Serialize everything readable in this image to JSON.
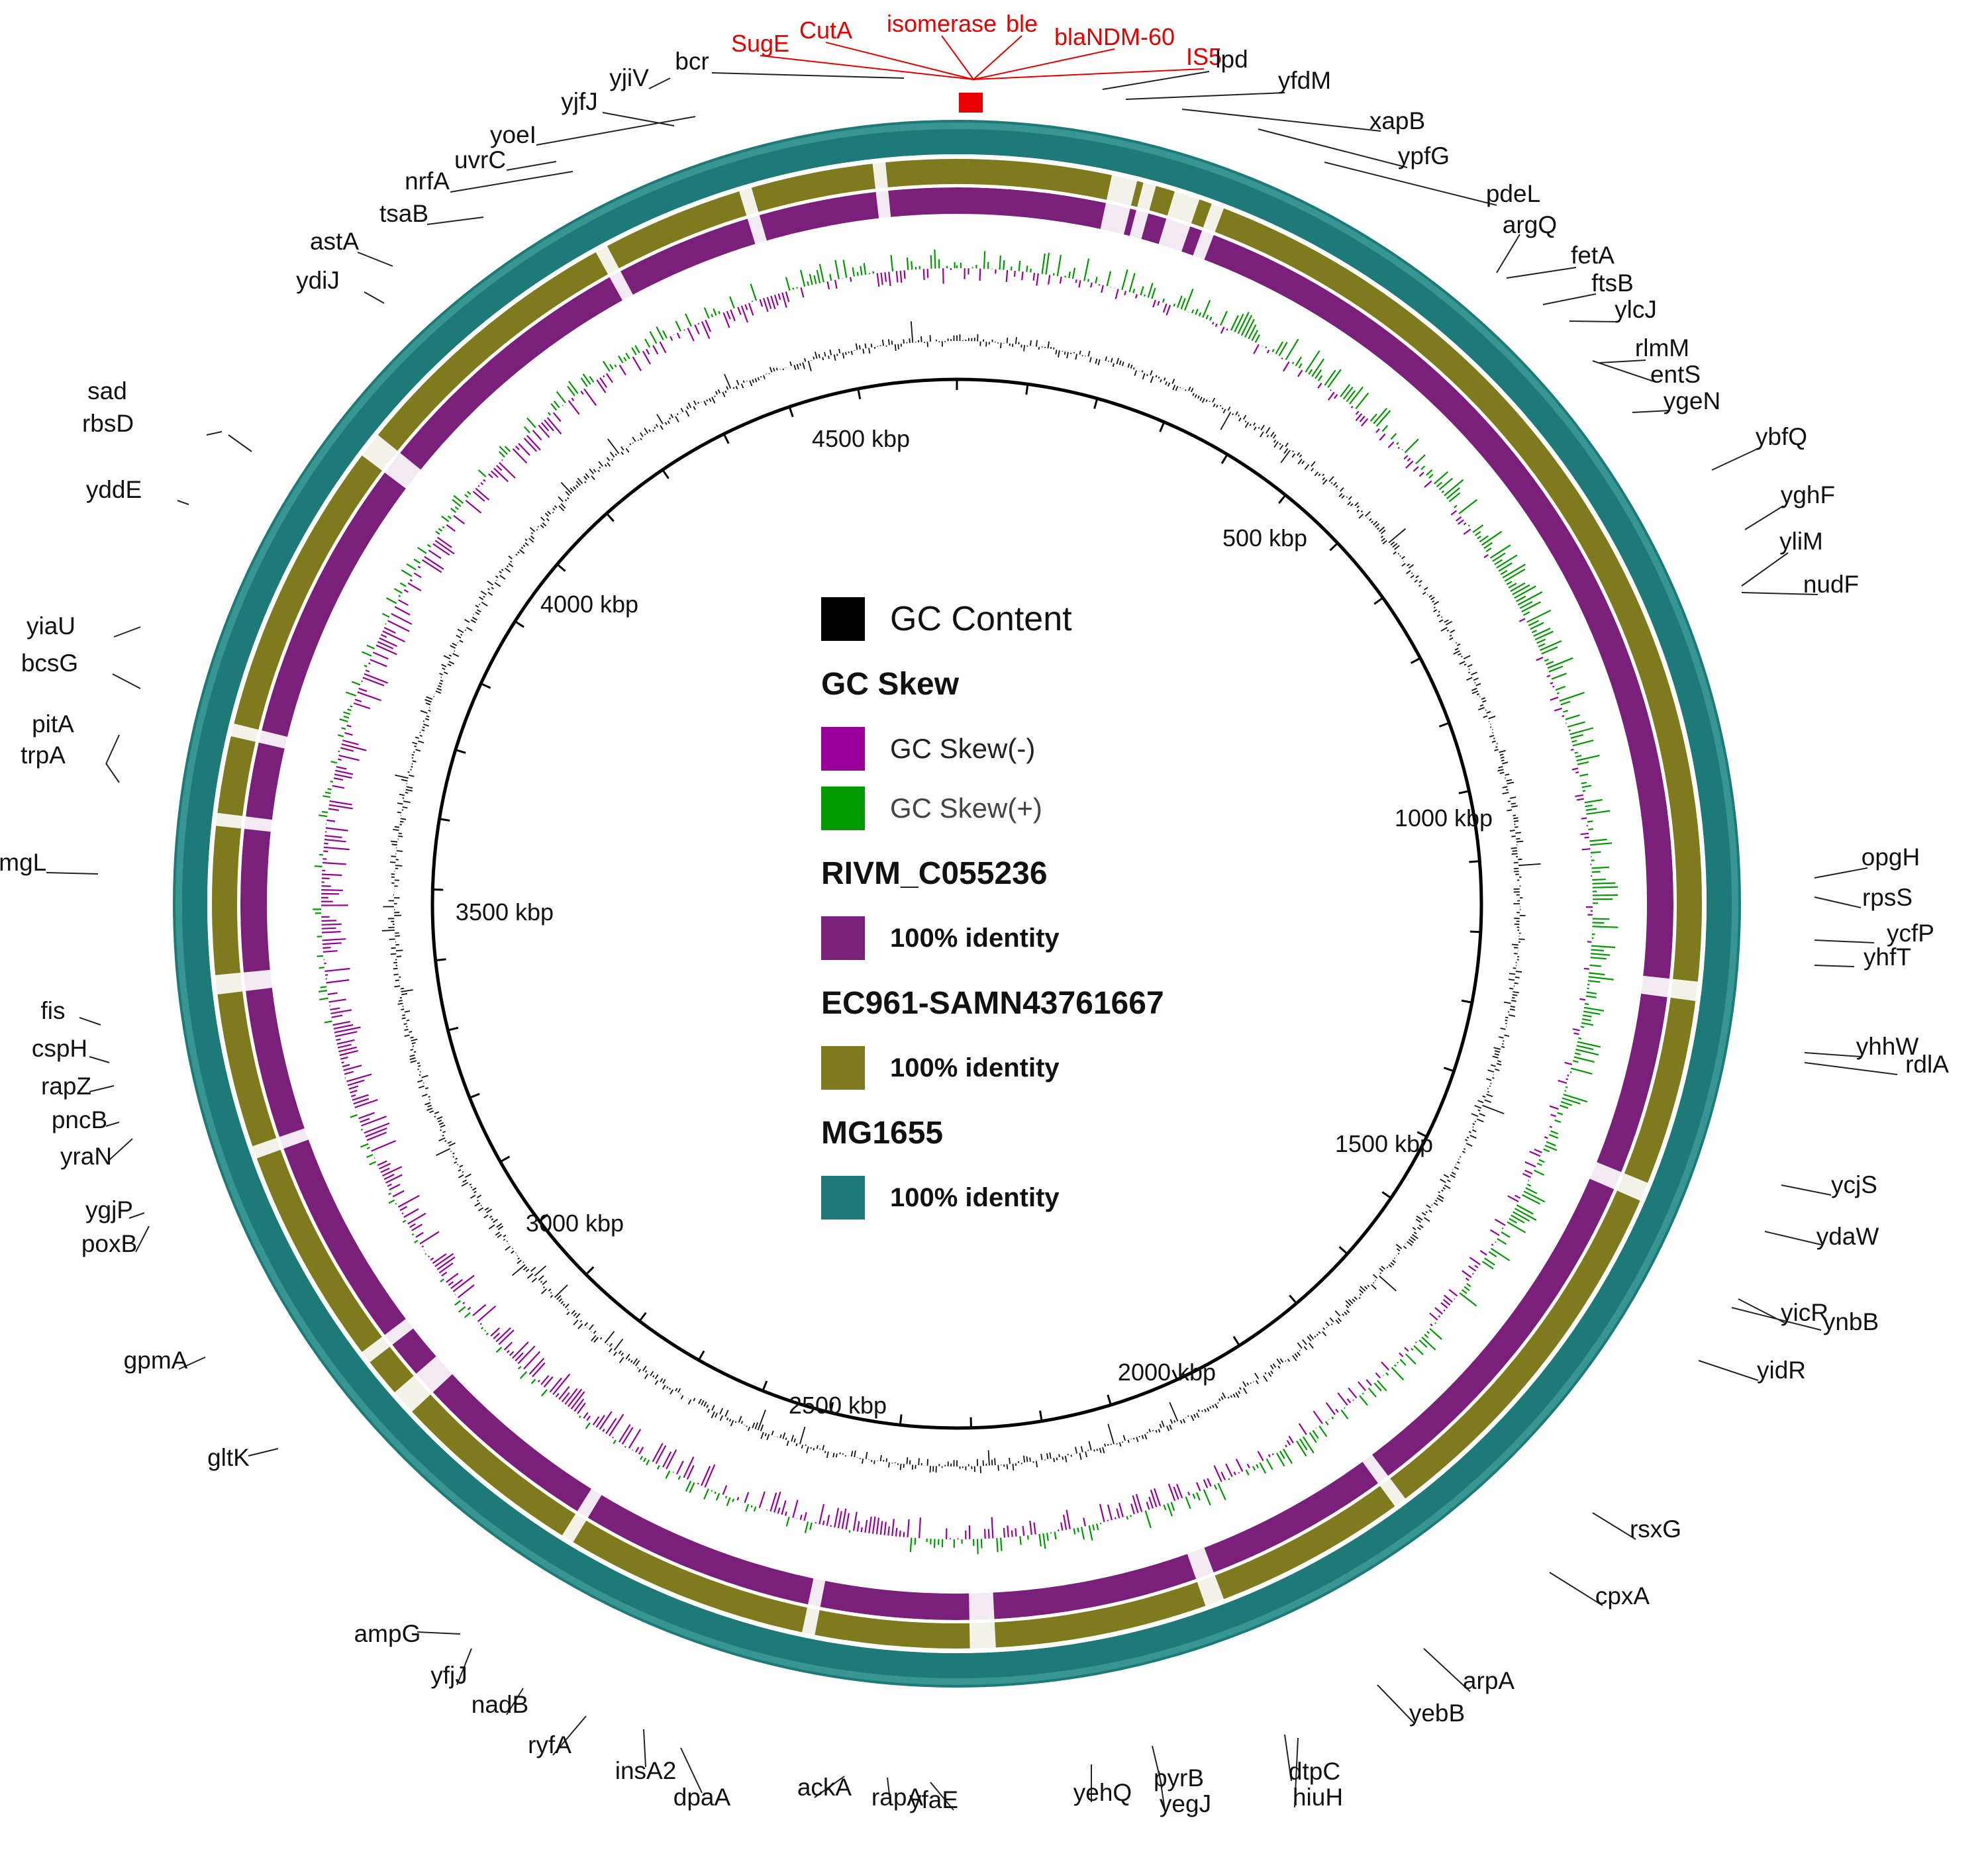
{
  "ticks": [
    "500 kbp",
    "1000 kbp",
    "1500 kbp",
    "2000 kbp",
    "2500 kbp",
    "3000 kbp",
    "3500 kbp",
    "4000 kbp",
    "4500 kbp"
  ],
  "legend": {
    "gc_content": "GC Content",
    "gc_skew_title": "GC Skew",
    "gc_skew_neg": "GC Skew(-)",
    "gc_skew_pos": "GC Skew(+)",
    "ring1_name": "RIVM_C055236",
    "ring1_identity": "100% identity",
    "ring2_name": "EC961-SAMN43761667",
    "ring2_identity": "100% identity",
    "ring3_name": "MG1655",
    "ring3_identity": "100% identity"
  },
  "colors": {
    "gc_content": "#111111",
    "gc_skew_neg": "#990099",
    "gc_skew_pos": "#009900",
    "ring1": "#7a1f7a",
    "ring2": "#7f7a1e",
    "ring3": "#1d7a78",
    "highlight": "#e60000"
  },
  "red_genes": [
    "SugE",
    "CutA",
    "isomerase",
    "ble",
    "blaNDM-60",
    "IS5"
  ],
  "genes": [
    "lpd",
    "yfdM",
    "xapB",
    "ypfG",
    "pdeL",
    "argQ",
    "fetA",
    "ftsB",
    "ylcJ",
    "rlmM",
    "entS",
    "ygeN",
    "ybfQ",
    "yghF",
    "yliM",
    "nudF",
    "opgH",
    "rpsS",
    "ycfP",
    "yhfT",
    "yhhW",
    "rdlA",
    "ycjS",
    "ydaW",
    "yicR",
    "ynbB",
    "yidR",
    "rsxG",
    "cpxA",
    "arpA",
    "yebB",
    "dtpC",
    "hiuH",
    "pyrB",
    "yegJ",
    "yehQ",
    "yfaE",
    "rapA",
    "ackA",
    "dpaA",
    "insA2",
    "ryfA",
    "nadB",
    "yfjJ",
    "ampG",
    "gltK",
    "gpmA",
    "poxB",
    "ygjP",
    "yraN",
    "pncB",
    "rapZ",
    "cspH",
    "fis",
    "ymgL",
    "trpA",
    "pitA",
    "bcsG",
    "yiaU",
    "yddE",
    "rbsD",
    "sad",
    "ydiJ",
    "astA",
    "tsaB",
    "nrfA",
    "uvrC",
    "yoeI",
    "yjfJ",
    "yjiV",
    "bcr"
  ]
}
